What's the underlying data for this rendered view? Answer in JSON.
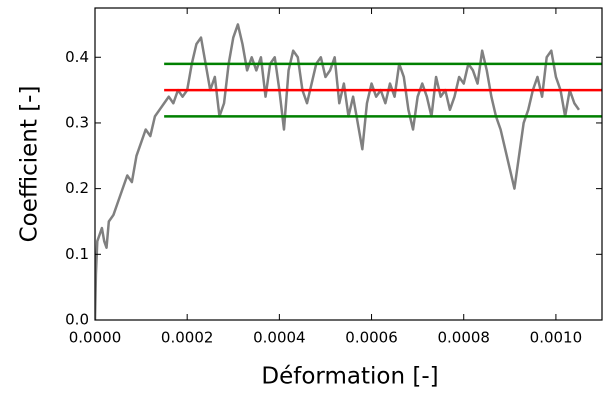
{
  "chart_data": {
    "type": "line",
    "xlabel": "Déformation [-]",
    "ylabel": "Coefficient [-]",
    "xlim": [
      0,
      0.0011
    ],
    "ylim": [
      0,
      0.475
    ],
    "xticks": [
      {
        "value": 0,
        "label": "0.0000"
      },
      {
        "value": 0.0002,
        "label": "0.0002"
      },
      {
        "value": 0.0004,
        "label": "0.0004"
      },
      {
        "value": 0.0006,
        "label": "0.0006"
      },
      {
        "value": 0.0008,
        "label": "0.0008"
      },
      {
        "value": 0.001,
        "label": "0.0010"
      }
    ],
    "yticks": [
      {
        "value": 0,
        "label": "0.0"
      },
      0.1,
      0.2,
      0.3,
      0.4
    ],
    "series": [
      {
        "color": "#808080",
        "x": [
          0,
          2e-06,
          5e-06,
          1e-05,
          1.5e-05,
          2e-05,
          2.5e-05,
          3e-05,
          4e-05,
          5e-05,
          6e-05,
          7e-05,
          8e-05,
          9e-05,
          0.0001,
          0.00011,
          0.00012,
          0.00013,
          0.00014,
          0.00015,
          0.00016,
          0.00017,
          0.00018,
          0.00019,
          0.0002,
          0.00021,
          0.00022,
          0.00023,
          0.00024,
          0.00025,
          0.00026,
          0.00027,
          0.00028,
          0.00029,
          0.0003,
          0.00031,
          0.00032,
          0.00033,
          0.00034,
          0.00035,
          0.00036,
          0.00037,
          0.00038,
          0.00039,
          0.0004,
          0.00041,
          0.00042,
          0.00043,
          0.00044,
          0.00045,
          0.00046,
          0.00047,
          0.00048,
          0.00049,
          0.0005,
          0.00051,
          0.00052,
          0.00053,
          0.00054,
          0.00055,
          0.00056,
          0.00057,
          0.00058,
          0.00059,
          0.0006,
          0.00061,
          0.00062,
          0.00063,
          0.00064,
          0.00065,
          0.00066,
          0.00067,
          0.00068,
          0.00069,
          0.0007,
          0.00071,
          0.00072,
          0.00073,
          0.00074,
          0.00075,
          0.00076,
          0.00077,
          0.00078,
          0.00079,
          0.0008,
          0.00081,
          0.00082,
          0.00083,
          0.00084,
          0.00085,
          0.00086,
          0.00087,
          0.00088,
          0.00089,
          0.0009,
          0.00091,
          0.00092,
          0.00093,
          0.00094,
          0.00095,
          0.00096,
          0.00097,
          0.00098,
          0.00099,
          0.001,
          0.00101,
          0.00102,
          0.00103,
          0.00104,
          0.00105
        ],
        "values": [
          0,
          0.07,
          0.12,
          0.13,
          0.14,
          0.12,
          0.11,
          0.15,
          0.16,
          0.18,
          0.2,
          0.22,
          0.21,
          0.25,
          0.27,
          0.29,
          0.28,
          0.31,
          0.32,
          0.33,
          0.34,
          0.33,
          0.35,
          0.34,
          0.35,
          0.39,
          0.42,
          0.43,
          0.39,
          0.35,
          0.37,
          0.31,
          0.33,
          0.39,
          0.43,
          0.45,
          0.42,
          0.38,
          0.4,
          0.38,
          0.4,
          0.34,
          0.39,
          0.4,
          0.35,
          0.29,
          0.38,
          0.41,
          0.4,
          0.35,
          0.33,
          0.36,
          0.39,
          0.4,
          0.37,
          0.38,
          0.4,
          0.33,
          0.36,
          0.31,
          0.34,
          0.3,
          0.26,
          0.33,
          0.36,
          0.34,
          0.35,
          0.33,
          0.36,
          0.34,
          0.39,
          0.37,
          0.32,
          0.29,
          0.34,
          0.36,
          0.34,
          0.31,
          0.37,
          0.34,
          0.35,
          0.32,
          0.34,
          0.37,
          0.36,
          0.39,
          0.38,
          0.36,
          0.41,
          0.38,
          0.34,
          0.31,
          0.29,
          0.26,
          0.23,
          0.2,
          0.25,
          0.3,
          0.32,
          0.35,
          0.37,
          0.34,
          0.4,
          0.41,
          0.37,
          0.35,
          0.31,
          0.35,
          0.33,
          0.32
        ]
      },
      {
        "color": "#008000",
        "x": [
          0.00015,
          0.0011
        ],
        "values": [
          0.39,
          0.39
        ]
      },
      {
        "color": "#ff0000",
        "x": [
          0.00015,
          0.0011
        ],
        "values": [
          0.35,
          0.35
        ]
      },
      {
        "color": "#008000",
        "x": [
          0.00015,
          0.0011
        ],
        "values": [
          0.31,
          0.31
        ]
      }
    ]
  }
}
